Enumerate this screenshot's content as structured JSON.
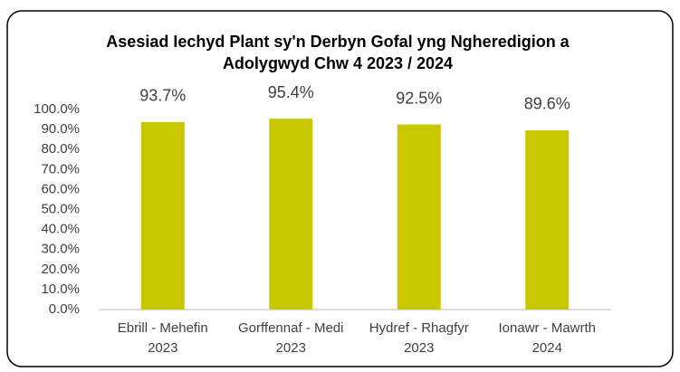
{
  "chart_data": {
    "type": "bar",
    "title": "Asesiad Iechyd Plant sy'n Derbyn Gofal yng Ngheredigion a\nAdolygwyd Chw 4 2023 / 2024",
    "categories": [
      "Ebrill - Mehefin\n2023",
      "Gorffennaf - Medi\n2023",
      "Hydref - Rhagfyr\n2023",
      "Ionawr - Mawrth\n2024"
    ],
    "values": [
      93.7,
      95.4,
      92.5,
      89.6
    ],
    "value_labels": [
      "93.7%",
      "95.4%",
      "92.5%",
      "89.6%"
    ],
    "color": "#c9c800",
    "ylim": [
      0,
      100
    ],
    "yticks": [
      {
        "value": 0,
        "label": "0.0%"
      },
      {
        "value": 10,
        "label": "10.0%"
      },
      {
        "value": 20,
        "label": "20.0%"
      },
      {
        "value": 30,
        "label": "30.0%"
      },
      {
        "value": 40,
        "label": "40.0%"
      },
      {
        "value": 50,
        "label": "50.0%"
      },
      {
        "value": 60,
        "label": "60.0%"
      },
      {
        "value": 70,
        "label": "70.0%"
      },
      {
        "value": 80,
        "label": "80.0%"
      },
      {
        "value": 90,
        "label": "90.0%"
      },
      {
        "value": 100,
        "label": "100.0%"
      }
    ],
    "grid": false
  }
}
